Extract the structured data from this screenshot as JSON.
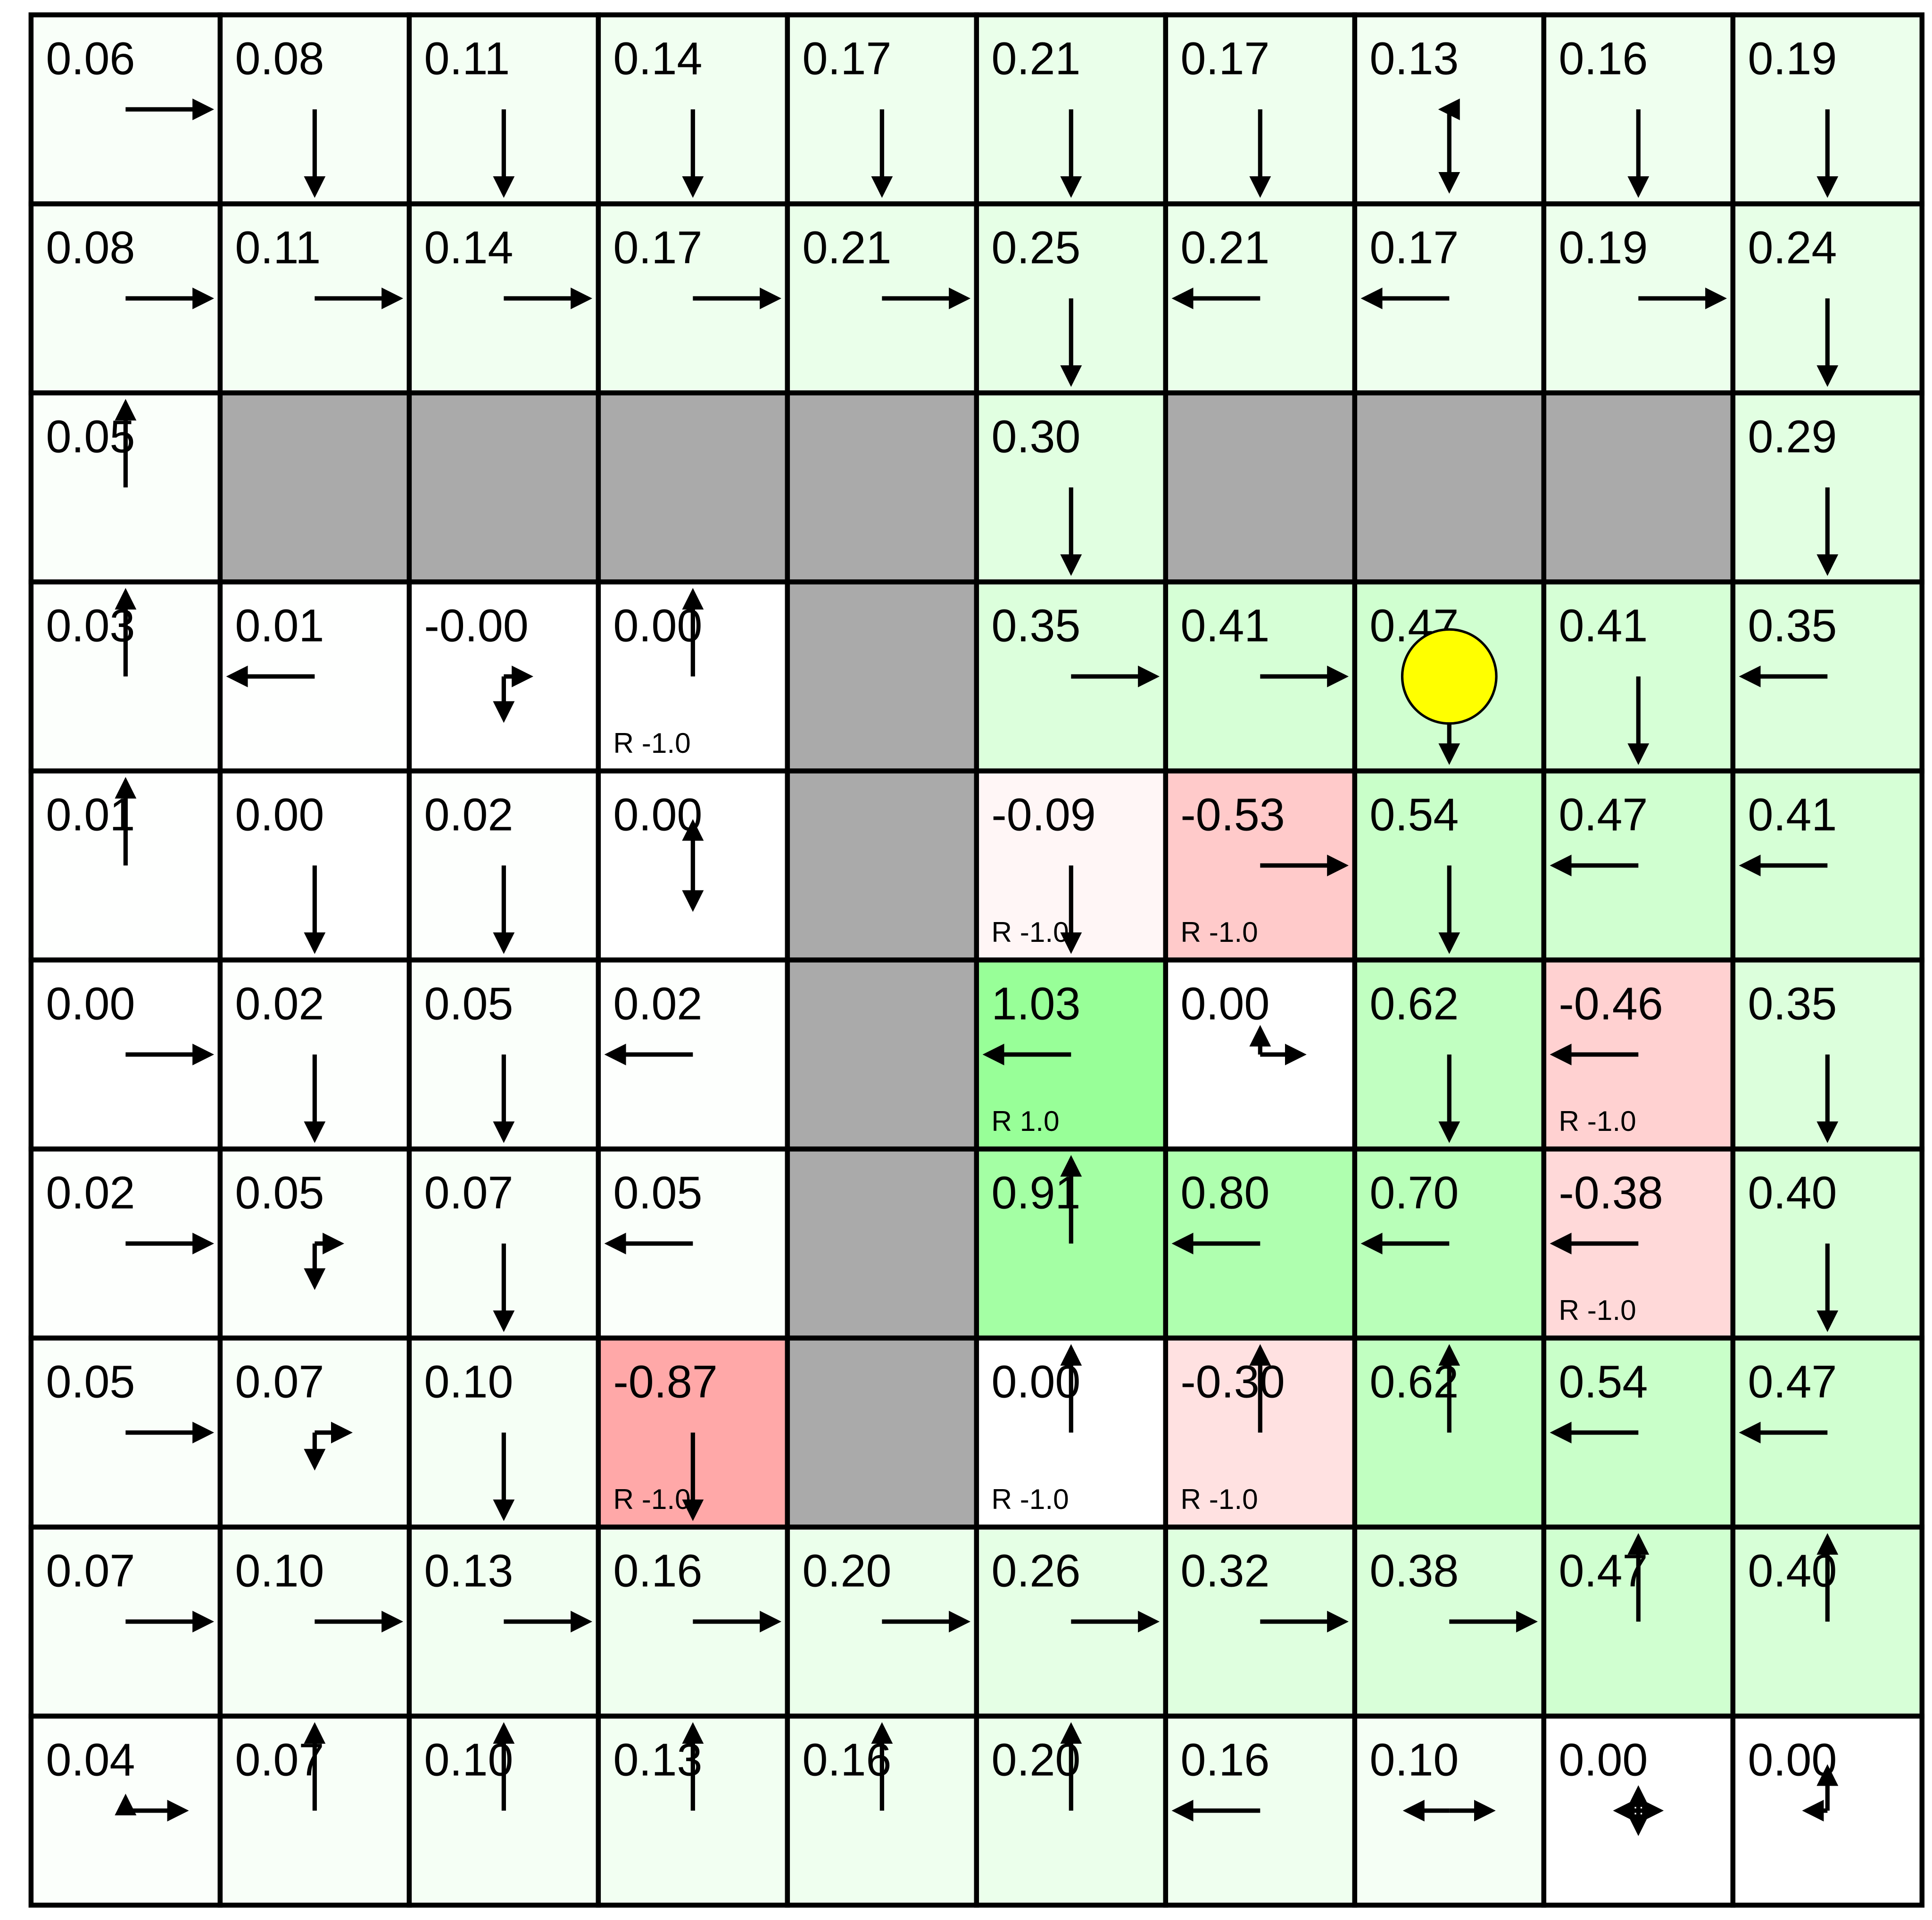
{
  "gridworld": {
    "colors": {
      "wall": "#aaaaaa",
      "grid_line": "#000000",
      "agent": "#ffff00",
      "arrow": "#000000"
    },
    "agent": {
      "row": 3,
      "col": 7
    },
    "rows": [
      [
        {
          "v": "0.06",
          "p": {
            "R": 1
          }
        },
        {
          "v": "0.08",
          "p": {
            "D": 1
          }
        },
        {
          "v": "0.11",
          "p": {
            "D": 1
          }
        },
        {
          "v": "0.14",
          "p": {
            "D": 1
          }
        },
        {
          "v": "0.17",
          "p": {
            "D": 1
          }
        },
        {
          "v": "0.21",
          "p": {
            "D": 1
          }
        },
        {
          "v": "0.17",
          "p": {
            "D": 1
          }
        },
        {
          "v": "0.13",
          "p": {
            "D": 0.95,
            "L": 0.08
          }
        },
        {
          "v": "0.16",
          "p": {
            "D": 1
          }
        },
        {
          "v": "0.19",
          "p": {
            "D": 1
          }
        }
      ],
      [
        {
          "v": "0.08",
          "p": {
            "R": 1
          }
        },
        {
          "v": "0.11",
          "p": {
            "R": 1
          }
        },
        {
          "v": "0.14",
          "p": {
            "R": 1
          }
        },
        {
          "v": "0.17",
          "p": {
            "R": 1
          }
        },
        {
          "v": "0.21",
          "p": {
            "R": 1
          }
        },
        {
          "v": "0.25",
          "p": {
            "D": 1
          }
        },
        {
          "v": "0.21",
          "p": {
            "L": 1
          }
        },
        {
          "v": "0.17",
          "p": {
            "L": 1
          }
        },
        {
          "v": "0.19",
          "p": {
            "R": 1
          }
        },
        {
          "v": "0.24",
          "p": {
            "D": 1
          }
        }
      ],
      [
        {
          "v": "0.05",
          "p": {
            "U": 1
          }
        },
        {
          "wall": true
        },
        {
          "wall": true
        },
        {
          "wall": true
        },
        {
          "wall": true
        },
        {
          "v": "0.30",
          "p": {
            "D": 1
          }
        },
        {
          "wall": true
        },
        {
          "wall": true
        },
        {
          "wall": true
        },
        {
          "v": "0.29",
          "p": {
            "D": 1
          }
        }
      ],
      [
        {
          "v": "0.03",
          "p": {
            "U": 1
          }
        },
        {
          "v": "0.01",
          "p": {
            "L": 1
          }
        },
        {
          "v": "-0.00",
          "p": {
            "D": 0.5,
            "R": 0.3
          }
        },
        {
          "v": "0.00",
          "p": {
            "U": 1
          },
          "r": "R -1.0"
        },
        {
          "wall": true
        },
        {
          "v": "0.35",
          "p": {
            "R": 1
          }
        },
        {
          "v": "0.41",
          "p": {
            "R": 1
          }
        },
        {
          "v": "0.47",
          "p": {
            "D": 1
          }
        },
        {
          "v": "0.41",
          "p": {
            "D": 1
          }
        },
        {
          "v": "0.35",
          "p": {
            "L": 1
          }
        }
      ],
      [
        {
          "v": "0.01",
          "p": {
            "U": 1
          }
        },
        {
          "v": "0.00",
          "p": {
            "D": 1
          }
        },
        {
          "v": "0.02",
          "p": {
            "D": 1
          }
        },
        {
          "v": "0.00",
          "p": {
            "U": 0.5,
            "D": 0.5
          }
        },
        {
          "wall": true
        },
        {
          "v": "-0.09",
          "p": {
            "D": 1
          },
          "r": "R -1.0"
        },
        {
          "v": "-0.53",
          "p": {
            "R": 1
          },
          "r": "R -1.0"
        },
        {
          "v": "0.54",
          "p": {
            "D": 1
          }
        },
        {
          "v": "0.47",
          "p": {
            "L": 1
          }
        },
        {
          "v": "0.41",
          "p": {
            "L": 1
          }
        }
      ],
      [
        {
          "v": "0.00",
          "p": {
            "R": 1
          }
        },
        {
          "v": "0.02",
          "p": {
            "D": 1
          }
        },
        {
          "v": "0.05",
          "p": {
            "D": 1
          }
        },
        {
          "v": "0.02",
          "p": {
            "L": 1
          }
        },
        {
          "wall": true
        },
        {
          "v": "1.03",
          "p": {
            "L": 1
          },
          "r": "R 1.0"
        },
        {
          "v": "0.00",
          "p": {
            "U": 0.3,
            "R": 0.5
          }
        },
        {
          "v": "0.62",
          "p": {
            "D": 1
          }
        },
        {
          "v": "-0.46",
          "p": {
            "L": 1
          },
          "r": "R -1.0"
        },
        {
          "v": "0.35",
          "p": {
            "D": 1
          }
        }
      ],
      [
        {
          "v": "0.02",
          "p": {
            "R": 1
          }
        },
        {
          "v": "0.05",
          "p": {
            "D": 0.5,
            "R": 0.3
          }
        },
        {
          "v": "0.07",
          "p": {
            "D": 1
          }
        },
        {
          "v": "0.05",
          "p": {
            "L": 1
          }
        },
        {
          "wall": true
        },
        {
          "v": "0.91",
          "p": {
            "U": 1
          }
        },
        {
          "v": "0.80",
          "p": {
            "L": 1
          }
        },
        {
          "v": "0.70",
          "p": {
            "L": 1
          }
        },
        {
          "v": "-0.38",
          "p": {
            "L": 1
          },
          "r": "R -1.0"
        },
        {
          "v": "0.40",
          "p": {
            "D": 1
          }
        }
      ],
      [
        {
          "v": "0.05",
          "p": {
            "R": 1
          }
        },
        {
          "v": "0.07",
          "p": {
            "D": 0.4,
            "R": 0.4
          }
        },
        {
          "v": "0.10",
          "p": {
            "D": 1
          }
        },
        {
          "v": "-0.87",
          "p": {
            "D": 1
          },
          "r": "R -1.0"
        },
        {
          "wall": true
        },
        {
          "v": "0.00",
          "p": {
            "U": 1
          },
          "r": "R -1.0"
        },
        {
          "v": "-0.30",
          "p": {
            "U": 1
          },
          "r": "R -1.0"
        },
        {
          "v": "0.62",
          "p": {
            "U": 1
          }
        },
        {
          "v": "0.54",
          "p": {
            "L": 1
          }
        },
        {
          "v": "0.47",
          "p": {
            "L": 1
          }
        }
      ],
      [
        {
          "v": "0.07",
          "p": {
            "R": 1
          }
        },
        {
          "v": "0.10",
          "p": {
            "R": 1
          }
        },
        {
          "v": "0.13",
          "p": {
            "R": 1
          }
        },
        {
          "v": "0.16",
          "p": {
            "R": 1
          }
        },
        {
          "v": "0.20",
          "p": {
            "R": 1
          }
        },
        {
          "v": "0.26",
          "p": {
            "R": 1
          }
        },
        {
          "v": "0.32",
          "p": {
            "R": 1
          }
        },
        {
          "v": "0.38",
          "p": {
            "R": 1
          }
        },
        {
          "v": "0.47",
          "p": {
            "U": 1
          }
        },
        {
          "v": "0.40",
          "p": {
            "U": 1
          }
        }
      ],
      [
        {
          "v": "0.04",
          "p": {
            "U": 0.15,
            "R": 0.7
          }
        },
        {
          "v": "0.07",
          "p": {
            "U": 1
          }
        },
        {
          "v": "0.10",
          "p": {
            "U": 1
          }
        },
        {
          "v": "0.13",
          "p": {
            "U": 1
          }
        },
        {
          "v": "0.16",
          "p": {
            "U": 1
          }
        },
        {
          "v": "0.20",
          "p": {
            "U": 1
          }
        },
        {
          "v": "0.16",
          "p": {
            "L": 1
          }
        },
        {
          "v": "0.10",
          "p": {
            "L": 0.5,
            "R": 0.5
          }
        },
        {
          "v": "0.00",
          "p": {
            "L": 0.25,
            "U": 0.25,
            "R": 0.25,
            "D": 0.25
          }
        },
        {
          "v": "0.00",
          "p": {
            "L": 0.25,
            "U": 0.5
          }
        }
      ]
    ]
  }
}
